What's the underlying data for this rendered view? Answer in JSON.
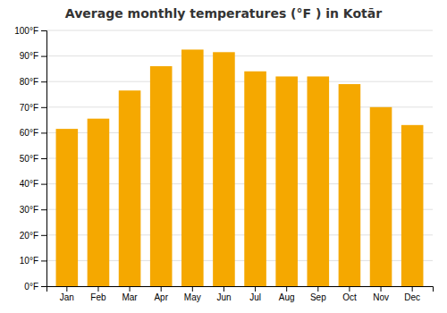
{
  "chart_data": {
    "type": "bar",
    "title": "Average monthly temperatures (°F ) in Kotār",
    "categories": [
      "Jan",
      "Feb",
      "Mar",
      "Apr",
      "May",
      "Jun",
      "Jul",
      "Aug",
      "Sep",
      "Oct",
      "Nov",
      "Dec"
    ],
    "values": [
      61.5,
      65.5,
      76.5,
      86.0,
      92.5,
      91.5,
      84.0,
      82.0,
      82.0,
      79.0,
      70.0,
      63.0
    ],
    "color": "#F5A800",
    "ylim": [
      0,
      100
    ],
    "yticks": [
      {
        "value": 0,
        "label": "0°F"
      },
      {
        "value": 10,
        "label": "10°F"
      },
      {
        "value": 20,
        "label": "20°F"
      },
      {
        "value": 30,
        "label": "30°F"
      },
      {
        "value": 40,
        "label": "40°F"
      },
      {
        "value": 50,
        "label": "50°F"
      },
      {
        "value": 60,
        "label": "60°F"
      },
      {
        "value": 70,
        "label": "70°F"
      },
      {
        "value": 80,
        "label": "80°F"
      },
      {
        "value": 90,
        "label": "90°F"
      },
      {
        "value": 100,
        "label": "100°F"
      }
    ],
    "grid": true
  }
}
